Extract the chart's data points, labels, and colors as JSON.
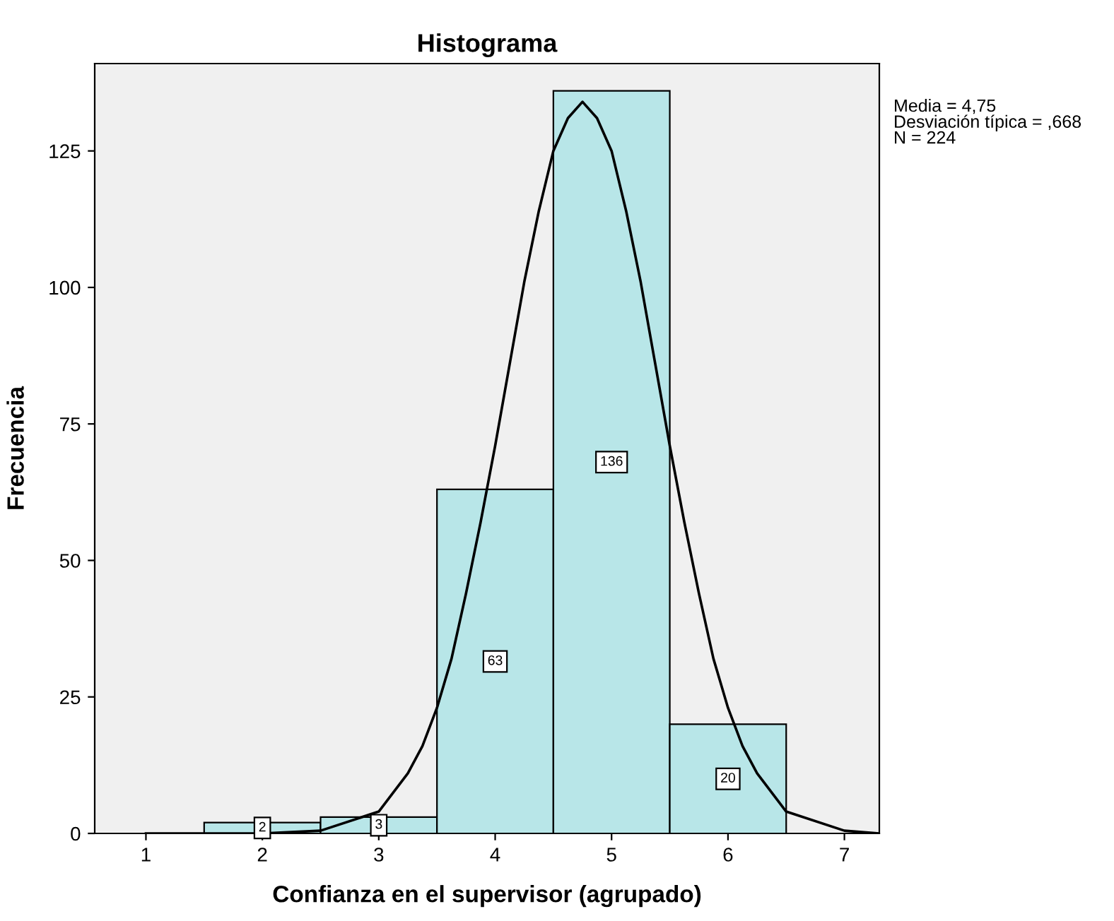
{
  "chart_data": {
    "type": "histogram",
    "title": "Histograma",
    "xlabel": "Confianza en el supervisor (agrupado)",
    "ylabel": "Frecuencia",
    "color": "#b8e6e8",
    "bins": [
      1.5,
      2.5,
      3.5,
      4.5,
      5.5,
      6.5
    ],
    "values": [
      2,
      3,
      63,
      136,
      20
    ],
    "value_labels": [
      "2",
      "3",
      "63",
      "136",
      "20"
    ],
    "series": [
      {
        "type": "line",
        "color": "#000000",
        "x": [
          1,
          2,
          2.5,
          3,
          3.25,
          3.375,
          3.5,
          3.625,
          3.75,
          3.875,
          4,
          4.125,
          4.25,
          4.375,
          4.5,
          4.625,
          4.75,
          4.875,
          5,
          5.125,
          5.25,
          5.375,
          5.5,
          5.625,
          5.75,
          5.875,
          6,
          6.125,
          6.25,
          6.5,
          7,
          7.3
        ],
        "values": [
          0,
          0,
          0.5,
          4,
          11,
          16,
          23,
          32,
          44,
          57,
          71,
          86,
          101,
          114,
          125,
          131,
          134,
          131,
          125,
          114,
          101,
          86,
          71,
          57,
          44,
          32,
          23,
          16,
          11,
          4,
          0.5,
          0
        ]
      }
    ],
    "xlim": [
      0.56,
      7.3
    ],
    "ylim": [
      0,
      141
    ],
    "xticks": [
      1,
      2,
      3,
      4,
      5,
      6,
      7
    ],
    "yticks": [
      0,
      25,
      50,
      75,
      100,
      125
    ],
    "annotations": [
      "Media = 4,75",
      "Desviación típica = ,668",
      "N = 224"
    ]
  }
}
